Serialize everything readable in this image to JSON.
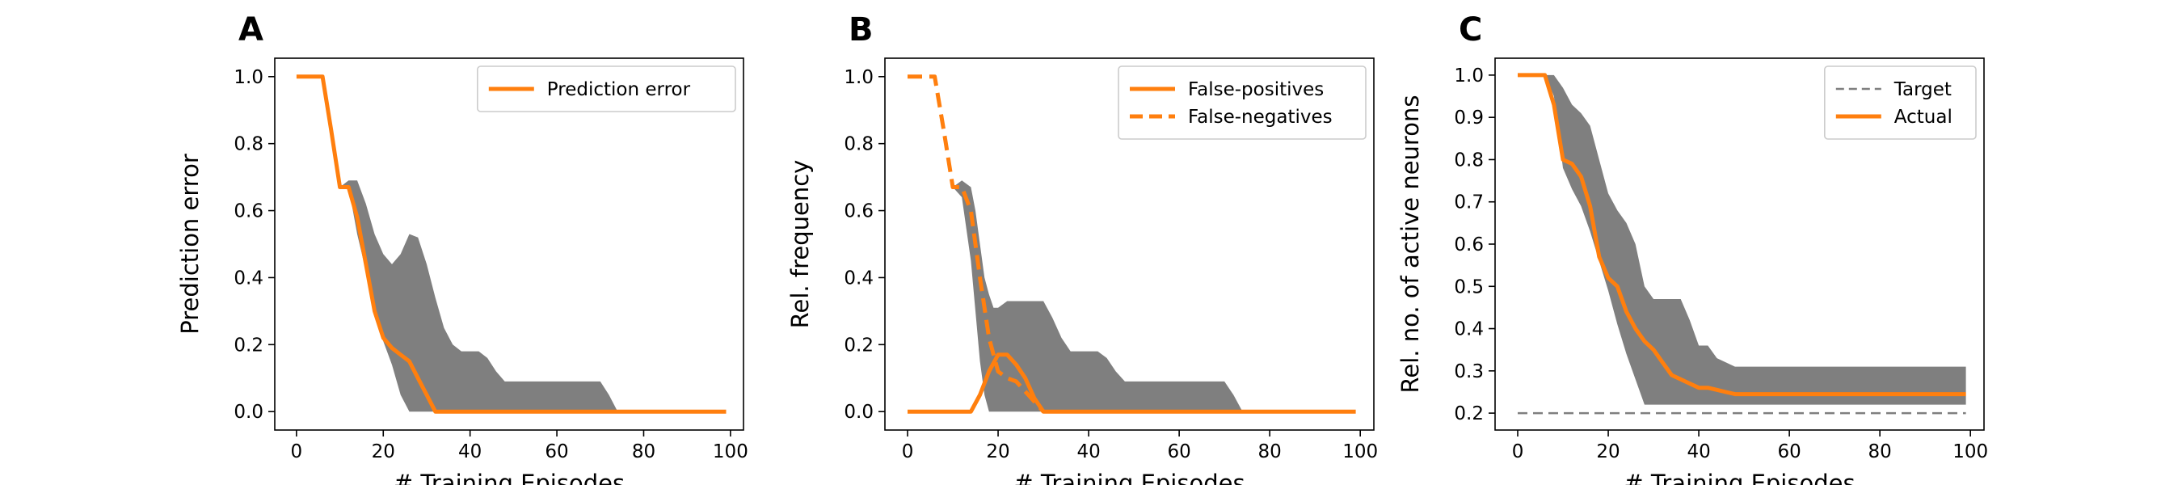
{
  "chart_data": [
    {
      "type": "line",
      "panel_label": "A",
      "xlabel": "# Training Episodes",
      "ylabel": "Prediction error",
      "xlim": [
        -5,
        103
      ],
      "ylim": [
        -0.055,
        1.055
      ],
      "x_ticks": [
        0,
        20,
        40,
        60,
        80,
        100
      ],
      "y_ticks": [
        0.0,
        0.2,
        0.4,
        0.6,
        0.8,
        1.0
      ],
      "y_tick_labels": [
        "0.0",
        "0.2",
        "0.4",
        "0.6",
        "0.8",
        "1.0"
      ],
      "legend_position": "top-right",
      "band": {
        "color": "#7f7f7f",
        "x": [
          10,
          12,
          14,
          16,
          18,
          20,
          22,
          24,
          26,
          28,
          30,
          32,
          34,
          36,
          38,
          40,
          42,
          44,
          46,
          48,
          50,
          60,
          70,
          72,
          74
        ],
        "upper": [
          0.67,
          0.69,
          0.69,
          0.62,
          0.53,
          0.47,
          0.44,
          0.47,
          0.53,
          0.52,
          0.44,
          0.34,
          0.25,
          0.2,
          0.18,
          0.18,
          0.18,
          0.16,
          0.12,
          0.09,
          0.09,
          0.09,
          0.09,
          0.05,
          0.0
        ],
        "lower": [
          0.67,
          0.67,
          0.53,
          0.42,
          0.29,
          0.21,
          0.14,
          0.05,
          0.0,
          0.0,
          0.0,
          0.0,
          0.0,
          0.0,
          0.0,
          0.0,
          0.0,
          0.0,
          0.0,
          0.0,
          0.0,
          0.0,
          0.0,
          0.0,
          0.0
        ]
      },
      "series": [
        {
          "name": "Prediction error",
          "color": "#ff7f0e",
          "style": "solid",
          "x": [
            0,
            6,
            8,
            10,
            12,
            14,
            16,
            18,
            20,
            22,
            24,
            26,
            28,
            30,
            32,
            40,
            60,
            80,
            99
          ],
          "y": [
            1.0,
            1.0,
            0.84,
            0.67,
            0.67,
            0.58,
            0.44,
            0.3,
            0.22,
            0.19,
            0.17,
            0.15,
            0.1,
            0.05,
            0.0,
            0.0,
            0.0,
            0.0,
            0.0
          ]
        }
      ]
    },
    {
      "type": "line",
      "panel_label": "B",
      "xlabel": "# Training Episodes",
      "ylabel": "Rel. frequency",
      "xlim": [
        -5,
        103
      ],
      "ylim": [
        -0.055,
        1.055
      ],
      "x_ticks": [
        0,
        20,
        40,
        60,
        80,
        100
      ],
      "y_ticks": [
        0.0,
        0.2,
        0.4,
        0.6,
        0.8,
        1.0
      ],
      "y_tick_labels": [
        "0.0",
        "0.2",
        "0.4",
        "0.6",
        "0.8",
        "1.0"
      ],
      "legend_position": "top-right",
      "band": {
        "color": "#7f7f7f",
        "x": [
          10,
          12,
          14,
          15,
          16,
          17,
          18,
          19,
          20,
          22,
          24,
          26,
          28,
          30,
          32,
          34,
          36,
          38,
          40,
          42,
          44,
          46,
          48,
          50,
          60,
          70,
          72,
          74
        ],
        "upper": [
          0.67,
          0.69,
          0.67,
          0.6,
          0.5,
          0.4,
          0.35,
          0.31,
          0.31,
          0.33,
          0.33,
          0.33,
          0.33,
          0.33,
          0.28,
          0.22,
          0.18,
          0.18,
          0.18,
          0.18,
          0.16,
          0.12,
          0.09,
          0.09,
          0.09,
          0.09,
          0.05,
          0.0
        ],
        "lower": [
          0.67,
          0.64,
          0.45,
          0.3,
          0.15,
          0.05,
          0.0,
          0.0,
          0.0,
          0.0,
          0.0,
          0.0,
          0.0,
          0.0,
          0.0,
          0.0,
          0.0,
          0.0,
          0.0,
          0.0,
          0.0,
          0.0,
          0.0,
          0.0,
          0.0,
          0.0,
          0.0,
          0.0
        ]
      },
      "series": [
        {
          "name": "False-positives",
          "color": "#ff7f0e",
          "style": "solid",
          "x": [
            0,
            14,
            16,
            18,
            20,
            22,
            24,
            26,
            28,
            30,
            40,
            60,
            80,
            99
          ],
          "y": [
            0.0,
            0.0,
            0.05,
            0.12,
            0.17,
            0.17,
            0.14,
            0.1,
            0.04,
            0.0,
            0.0,
            0.0,
            0.0,
            0.0
          ]
        },
        {
          "name": "False-negatives",
          "color": "#ff7f0e",
          "style": "dashed",
          "x": [
            0,
            6,
            8,
            10,
            12,
            14,
            16,
            18,
            20,
            22,
            24,
            26,
            28,
            30
          ],
          "y": [
            1.0,
            1.0,
            0.84,
            0.67,
            0.67,
            0.6,
            0.4,
            0.22,
            0.12,
            0.1,
            0.09,
            0.06,
            0.03,
            0.0
          ]
        }
      ]
    },
    {
      "type": "line",
      "panel_label": "C",
      "xlabel": "# Training Episodes",
      "ylabel": "Rel. no. of active neurons",
      "xlim": [
        -5,
        103
      ],
      "ylim": [
        0.16,
        1.04
      ],
      "x_ticks": [
        0,
        20,
        40,
        60,
        80,
        100
      ],
      "y_ticks": [
        0.2,
        0.3,
        0.4,
        0.5,
        0.6,
        0.7,
        0.8,
        0.9,
        1.0
      ],
      "y_tick_labels": [
        "0.2",
        "0.3",
        "0.4",
        "0.5",
        "0.6",
        "0.7",
        "0.8",
        "0.9",
        "1.0"
      ],
      "legend_position": "top-right",
      "band": {
        "color": "#7f7f7f",
        "x": [
          6,
          8,
          10,
          12,
          14,
          16,
          18,
          20,
          22,
          24,
          26,
          28,
          30,
          32,
          34,
          36,
          38,
          40,
          42,
          44,
          46,
          48,
          50,
          60,
          70,
          80,
          90,
          99
        ],
        "upper": [
          1.0,
          1.0,
          0.97,
          0.93,
          0.91,
          0.88,
          0.8,
          0.72,
          0.68,
          0.65,
          0.6,
          0.5,
          0.47,
          0.47,
          0.47,
          0.47,
          0.42,
          0.36,
          0.36,
          0.33,
          0.32,
          0.31,
          0.31,
          0.31,
          0.31,
          0.31,
          0.31,
          0.31
        ],
        "lower": [
          1.0,
          0.95,
          0.78,
          0.73,
          0.69,
          0.63,
          0.56,
          0.49,
          0.41,
          0.34,
          0.28,
          0.22,
          0.22,
          0.22,
          0.22,
          0.22,
          0.22,
          0.22,
          0.22,
          0.22,
          0.22,
          0.22,
          0.22,
          0.22,
          0.22,
          0.22,
          0.22,
          0.22
        ]
      },
      "series": [
        {
          "name": "Target",
          "color": "#7f7f7f",
          "style": "dashed",
          "x": [
            0,
            99
          ],
          "y": [
            0.2,
            0.2
          ]
        },
        {
          "name": "Actual",
          "color": "#ff7f0e",
          "style": "solid",
          "x": [
            0,
            6,
            8,
            10,
            12,
            14,
            16,
            18,
            20,
            22,
            24,
            26,
            28,
            30,
            32,
            34,
            36,
            38,
            40,
            42,
            44,
            46,
            48,
            50,
            60,
            70,
            80,
            90,
            99
          ],
          "y": [
            1.0,
            1.0,
            0.93,
            0.8,
            0.79,
            0.76,
            0.69,
            0.57,
            0.52,
            0.5,
            0.44,
            0.4,
            0.37,
            0.35,
            0.32,
            0.29,
            0.28,
            0.27,
            0.26,
            0.26,
            0.255,
            0.25,
            0.245,
            0.245,
            0.245,
            0.245,
            0.245,
            0.245,
            0.245
          ]
        }
      ]
    }
  ]
}
